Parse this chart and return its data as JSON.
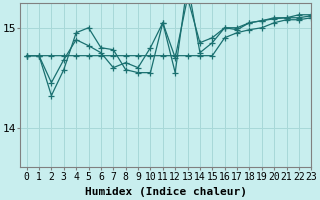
{
  "xlabel": "Humidex (Indice chaleur)",
  "bg_color": "#c8eeee",
  "line_color": "#1a7070",
  "grid_color": "#a8d8d8",
  "xlim": [
    -0.5,
    23
  ],
  "ylim": [
    13.6,
    15.25
  ],
  "yticks": [
    14,
    15
  ],
  "ytick_labels": [
    "14",
    "15"
  ],
  "xticks": [
    0,
    1,
    2,
    3,
    4,
    5,
    6,
    7,
    8,
    9,
    10,
    11,
    12,
    13,
    14,
    15,
    16,
    17,
    18,
    19,
    20,
    21,
    22,
    23
  ],
  "series": [
    [
      14.72,
      14.72,
      14.72,
      14.72,
      14.72,
      14.72,
      14.72,
      14.72,
      14.72,
      14.72,
      14.72,
      14.72,
      14.72,
      14.72,
      14.72,
      14.72,
      14.9,
      14.95,
      14.98,
      15.0,
      15.05,
      15.08,
      15.08,
      15.1
    ],
    [
      14.72,
      14.72,
      14.45,
      14.68,
      14.88,
      14.82,
      14.75,
      14.6,
      14.65,
      14.6,
      14.8,
      15.05,
      14.7,
      15.3,
      14.85,
      14.9,
      15.0,
      15.0,
      15.05,
      15.07,
      15.09,
      15.1,
      15.1,
      15.12
    ],
    [
      14.72,
      14.72,
      14.32,
      14.58,
      14.95,
      15.0,
      14.8,
      14.78,
      14.58,
      14.55,
      14.55,
      15.05,
      14.55,
      15.45,
      14.75,
      14.85,
      15.0,
      14.98,
      15.05,
      15.07,
      15.1,
      15.1,
      15.13,
      15.13
    ]
  ],
  "marker": "+",
  "markersize": 4,
  "linewidth": 0.9,
  "fontsize_xlabel": 8,
  "fontsize_ticks": 7
}
